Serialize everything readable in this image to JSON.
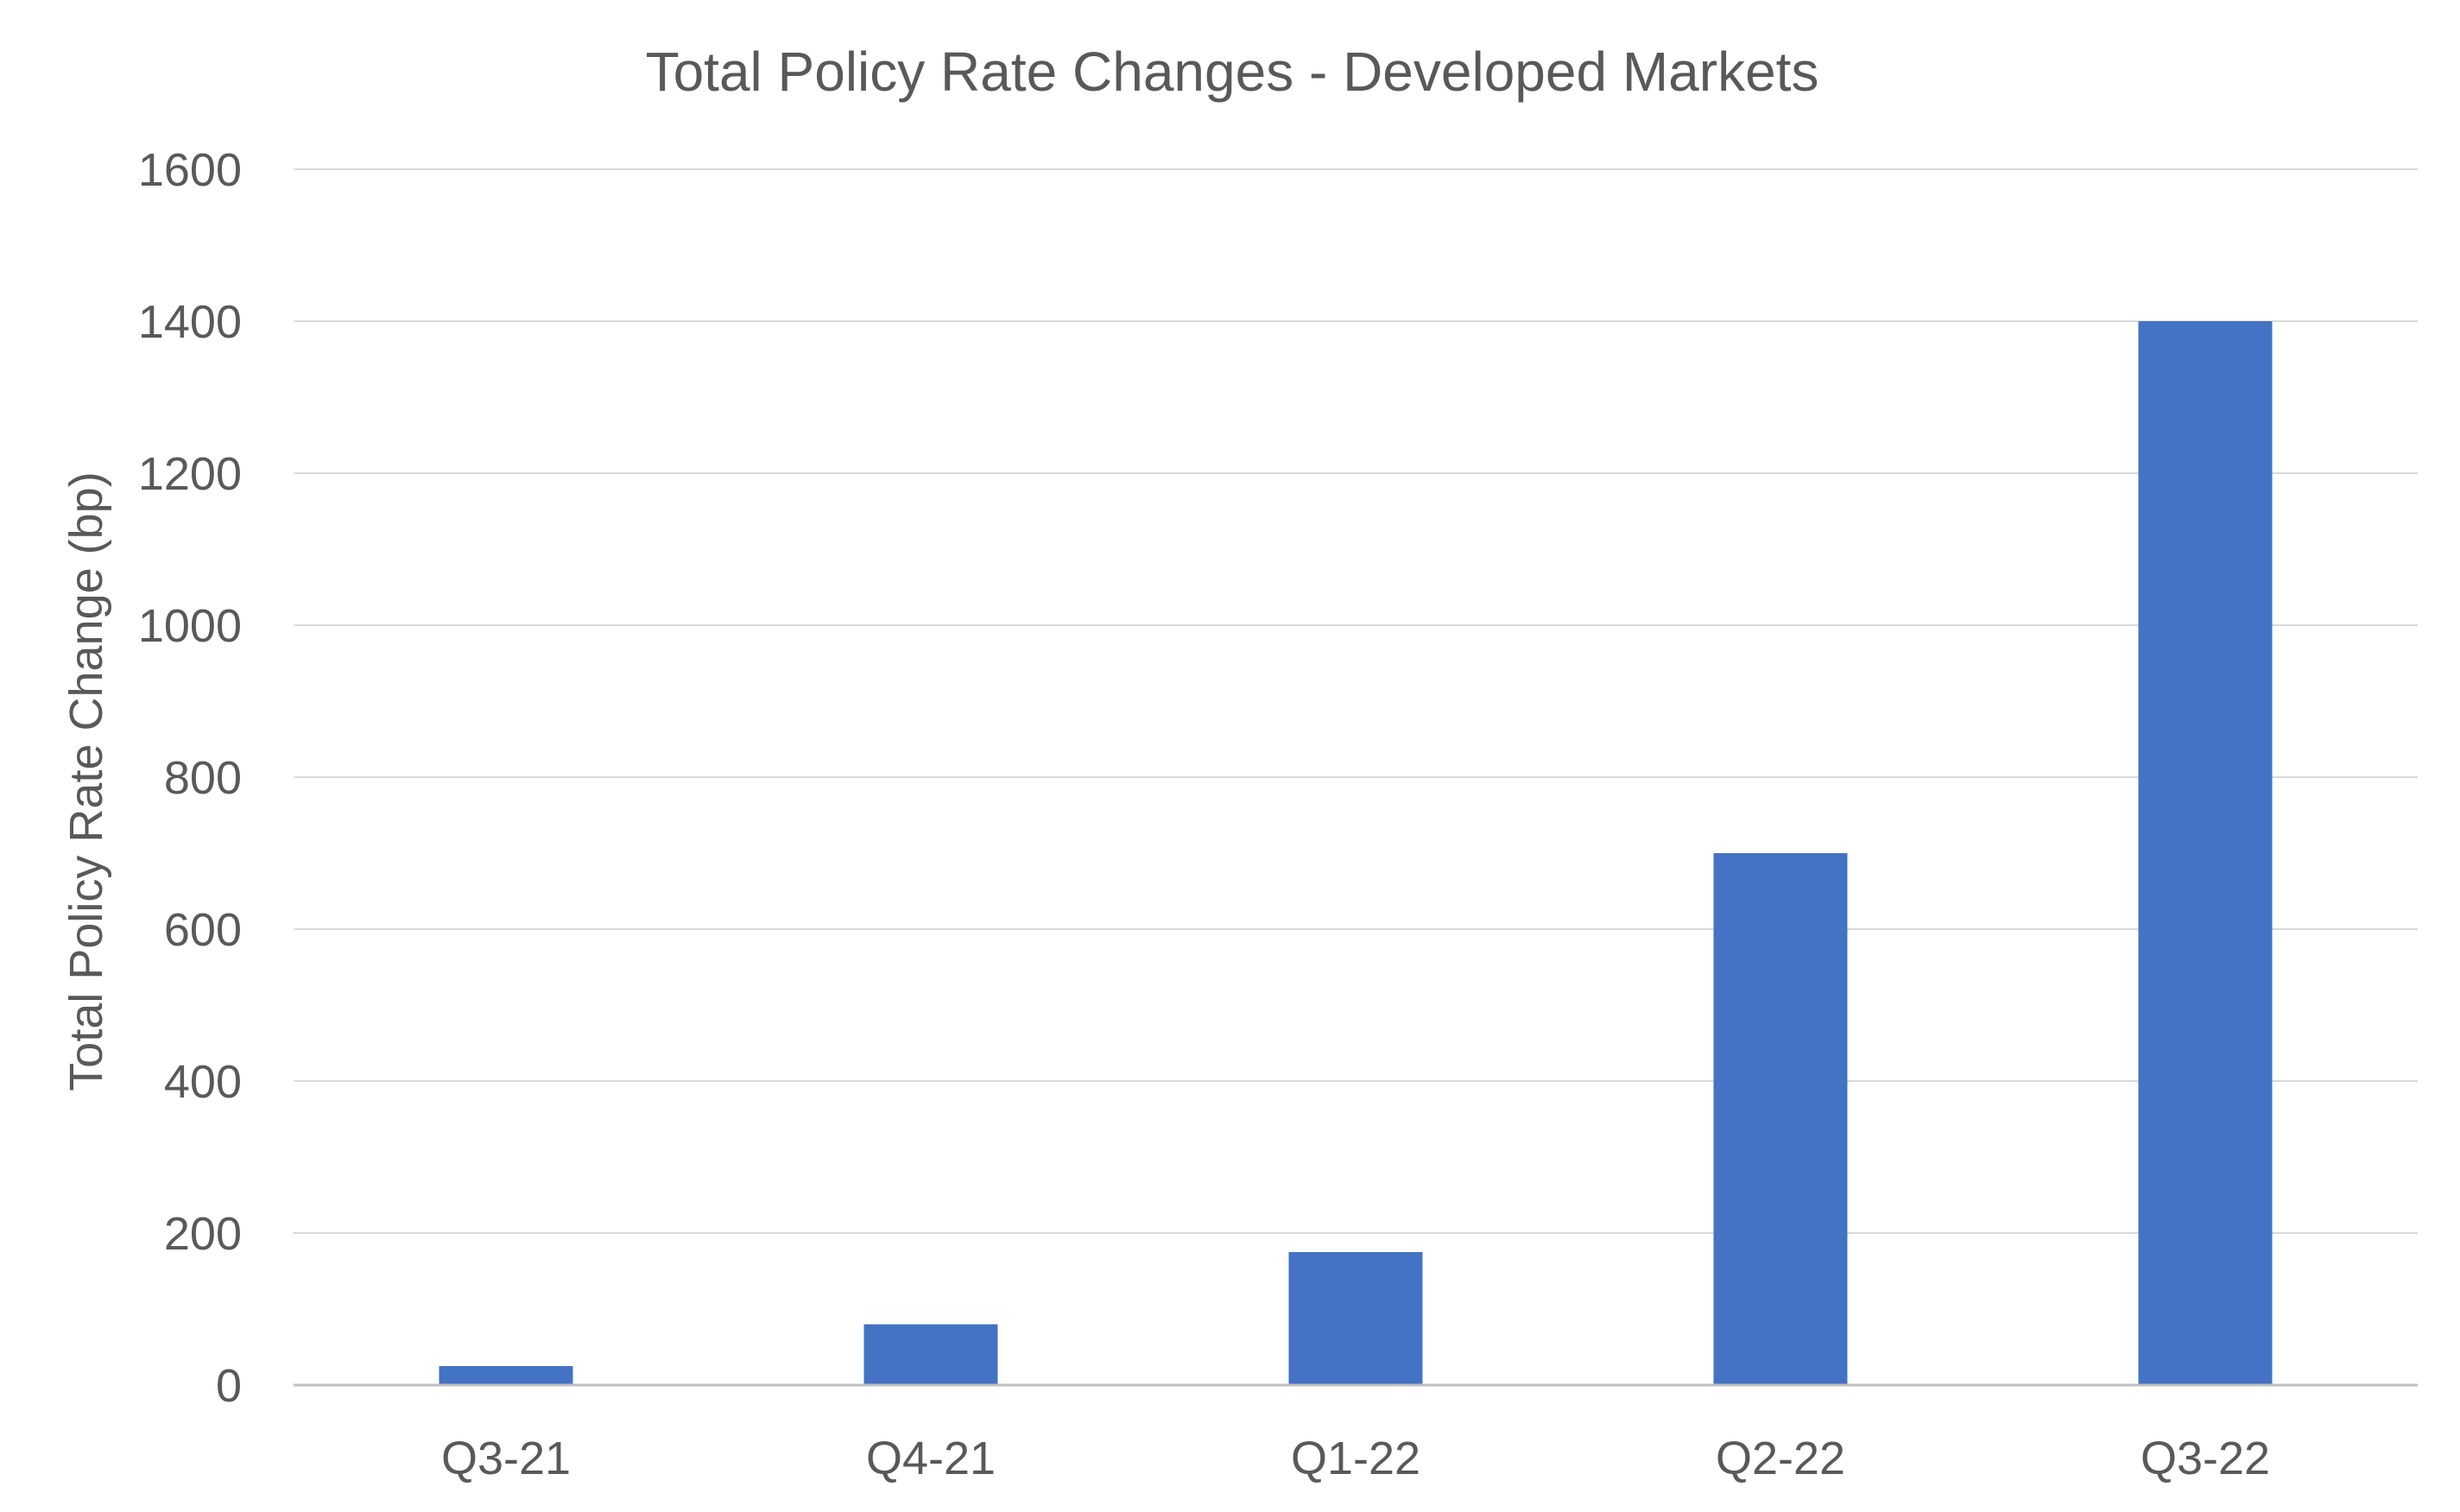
{
  "chart_data": {
    "type": "bar",
    "title": "Total Policy Rate Changes - Developed Markets",
    "xlabel": "",
    "ylabel": "Total Policy Rate Change (bp)",
    "categories": [
      "Q3-21",
      "Q4-21",
      "Q1-22",
      "Q2-22",
      "Q3-22"
    ],
    "values": [
      25,
      80,
      175,
      700,
      1400
    ],
    "ylim": [
      0,
      1600
    ],
    "yticks": [
      "0",
      "200",
      "400",
      "600",
      "800",
      "1000",
      "1200",
      "1400",
      "1600"
    ],
    "grid": true,
    "bar_color": "#4472C4"
  }
}
